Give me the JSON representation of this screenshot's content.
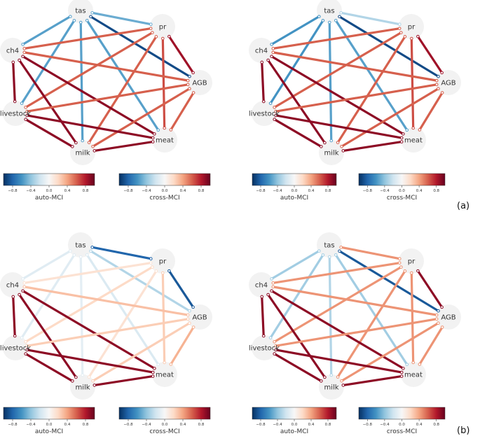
{
  "panel_labels": [
    "(a)",
    "(b)"
  ],
  "node_labels": [
    "tas",
    "pr",
    "ch4",
    "AGB",
    "livestock",
    "meat",
    "milk"
  ],
  "colorbar_titles": [
    "auto-MCI",
    "cross-MCI"
  ],
  "colorbar_ticks": [
    "−0.8",
    "−0.4",
    "0.0",
    "0.4",
    "0.8"
  ],
  "graphs": [
    {
      "panel": "(a)",
      "edges": [
        {
          "a": "tas",
          "b": "pr",
          "w": -0.5
        },
        {
          "a": "tas",
          "b": "AGB",
          "w": -0.9
        },
        {
          "a": "tas",
          "b": "ch4",
          "w": -0.55
        },
        {
          "a": "tas",
          "b": "livestock",
          "w": -0.55
        },
        {
          "a": "tas",
          "b": "milk",
          "w": -0.55
        },
        {
          "a": "tas",
          "b": "meat",
          "w": -0.55
        },
        {
          "a": "pr",
          "b": "ch4",
          "w": 0.6
        },
        {
          "a": "pr",
          "b": "livestock",
          "w": 0.6
        },
        {
          "a": "pr",
          "b": "milk",
          "w": 0.6
        },
        {
          "a": "pr",
          "b": "meat",
          "w": 0.65
        },
        {
          "a": "pr",
          "b": "AGB",
          "w": 0.85
        },
        {
          "a": "ch4",
          "b": "AGB",
          "w": 0.6
        },
        {
          "a": "ch4",
          "b": "meat",
          "w": 0.9
        },
        {
          "a": "ch4",
          "b": "milk",
          "w": 0.9
        },
        {
          "a": "ch4",
          "b": "livestock",
          "w": 0.9
        },
        {
          "a": "AGB",
          "b": "livestock",
          "w": 0.6
        },
        {
          "a": "AGB",
          "b": "milk",
          "w": 0.6
        },
        {
          "a": "AGB",
          "b": "meat",
          "w": 0.6
        },
        {
          "a": "livestock",
          "b": "meat",
          "w": 0.9
        },
        {
          "a": "livestock",
          "b": "milk",
          "w": 0.9
        },
        {
          "a": "milk",
          "b": "meat",
          "w": 0.9
        }
      ]
    },
    {
      "panel": "(a)",
      "edges": [
        {
          "a": "tas",
          "b": "pr",
          "w": -0.3
        },
        {
          "a": "tas",
          "b": "AGB",
          "w": -0.9
        },
        {
          "a": "tas",
          "b": "ch4",
          "w": -0.6
        },
        {
          "a": "tas",
          "b": "livestock",
          "w": -0.6
        },
        {
          "a": "tas",
          "b": "milk",
          "w": -0.55
        },
        {
          "a": "tas",
          "b": "meat",
          "w": -0.55
        },
        {
          "a": "pr",
          "b": "ch4",
          "w": 0.6
        },
        {
          "a": "pr",
          "b": "livestock",
          "w": 0.6
        },
        {
          "a": "pr",
          "b": "milk",
          "w": 0.6
        },
        {
          "a": "pr",
          "b": "meat",
          "w": 0.65
        },
        {
          "a": "pr",
          "b": "AGB",
          "w": 0.85
        },
        {
          "a": "ch4",
          "b": "AGB",
          "w": 0.6
        },
        {
          "a": "ch4",
          "b": "meat",
          "w": 0.9
        },
        {
          "a": "ch4",
          "b": "milk",
          "w": 0.9
        },
        {
          "a": "ch4",
          "b": "livestock",
          "w": 0.9
        },
        {
          "a": "AGB",
          "b": "livestock",
          "w": 0.6
        },
        {
          "a": "AGB",
          "b": "milk",
          "w": 0.6
        },
        {
          "a": "AGB",
          "b": "meat",
          "w": 0.6
        },
        {
          "a": "livestock",
          "b": "meat",
          "w": 0.9
        },
        {
          "a": "livestock",
          "b": "milk",
          "w": 0.9
        },
        {
          "a": "milk",
          "b": "meat",
          "w": 0.9
        }
      ]
    },
    {
      "panel": "(b)",
      "edges": [
        {
          "a": "tas",
          "b": "pr",
          "w": -0.8
        },
        {
          "a": "tas",
          "b": "AGB",
          "w": -0.3
        },
        {
          "a": "tas",
          "b": "ch4",
          "w": -0.12
        },
        {
          "a": "tas",
          "b": "livestock",
          "w": -0.12
        },
        {
          "a": "tas",
          "b": "milk",
          "w": -0.1
        },
        {
          "a": "tas",
          "b": "meat",
          "w": -0.15
        },
        {
          "a": "pr",
          "b": "ch4",
          "w": 0.15
        },
        {
          "a": "pr",
          "b": "livestock",
          "w": 0.2
        },
        {
          "a": "pr",
          "b": "milk",
          "w": 0.15
        },
        {
          "a": "pr",
          "b": "meat",
          "w": 0.25
        },
        {
          "a": "pr",
          "b": "AGB",
          "w": -0.85
        },
        {
          "a": "ch4",
          "b": "AGB",
          "w": 0.3
        },
        {
          "a": "ch4",
          "b": "meat",
          "w": 0.9
        },
        {
          "a": "ch4",
          "b": "milk",
          "w": 0.9
        },
        {
          "a": "ch4",
          "b": "livestock",
          "w": 0.9
        },
        {
          "a": "AGB",
          "b": "livestock",
          "w": 0.25
        },
        {
          "a": "AGB",
          "b": "milk",
          "w": 0.25
        },
        {
          "a": "AGB",
          "b": "meat",
          "w": 0.35
        },
        {
          "a": "livestock",
          "b": "meat",
          "w": 0.9
        },
        {
          "a": "livestock",
          "b": "milk",
          "w": 0.9
        },
        {
          "a": "milk",
          "b": "meat",
          "w": 0.9
        }
      ]
    },
    {
      "panel": "(b)",
      "edges": [
        {
          "a": "tas",
          "b": "pr",
          "w": 0.45
        },
        {
          "a": "tas",
          "b": "AGB",
          "w": -0.85
        },
        {
          "a": "tas",
          "b": "ch4",
          "w": -0.35
        },
        {
          "a": "tas",
          "b": "livestock",
          "w": -0.35
        },
        {
          "a": "tas",
          "b": "milk",
          "w": -0.3
        },
        {
          "a": "tas",
          "b": "meat",
          "w": -0.35
        },
        {
          "a": "pr",
          "b": "ch4",
          "w": 0.45
        },
        {
          "a": "pr",
          "b": "livestock",
          "w": 0.45
        },
        {
          "a": "pr",
          "b": "milk",
          "w": 0.45
        },
        {
          "a": "pr",
          "b": "meat",
          "w": 0.45
        },
        {
          "a": "pr",
          "b": "AGB",
          "w": 0.9
        },
        {
          "a": "ch4",
          "b": "AGB",
          "w": 0.45
        },
        {
          "a": "ch4",
          "b": "meat",
          "w": 0.9
        },
        {
          "a": "ch4",
          "b": "milk",
          "w": 0.9
        },
        {
          "a": "ch4",
          "b": "livestock",
          "w": 0.9
        },
        {
          "a": "AGB",
          "b": "livestock",
          "w": 0.45
        },
        {
          "a": "AGB",
          "b": "milk",
          "w": 0.45
        },
        {
          "a": "AGB",
          "b": "meat",
          "w": 0.45
        },
        {
          "a": "livestock",
          "b": "meat",
          "w": 0.9
        },
        {
          "a": "livestock",
          "b": "milk",
          "w": 0.9
        },
        {
          "a": "milk",
          "b": "meat",
          "w": 0.9
        }
      ]
    }
  ],
  "colormap": [
    "#053061",
    "#2166ac",
    "#4393c3",
    "#92c5de",
    "#d1e5f0",
    "#f7f7f7",
    "#fddbc7",
    "#f4a582",
    "#d6604d",
    "#b2182b",
    "#67001f"
  ]
}
